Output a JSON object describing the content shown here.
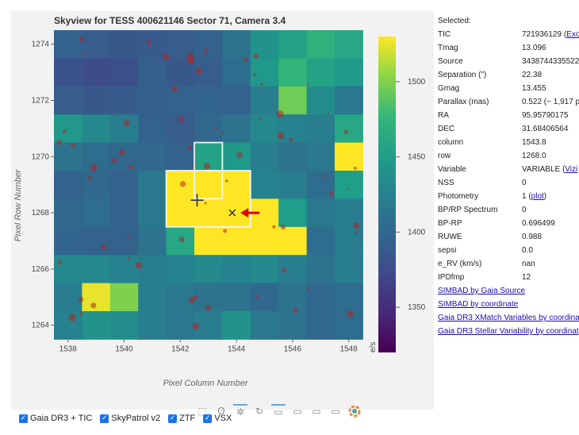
{
  "chart_data": {
    "type": "heatmap",
    "title": "Skyview for TESS 400621146 Sector 71, Camera 3.4",
    "xlabel": "Pixel Column Number",
    "ylabel": "Pixel Row Number",
    "colorbar_label": "e/s",
    "x_range": [
      1537.5,
      1548.5
    ],
    "y_range": [
      1263.5,
      1274.5
    ],
    "color_range": [
      1320,
      1530
    ],
    "x_ticks": [
      1538,
      1540,
      1542,
      1544,
      1546,
      1548
    ],
    "y_ticks": [
      1264,
      1266,
      1268,
      1270,
      1272,
      1274
    ],
    "colorbar_ticks": [
      1350,
      1400,
      1450,
      1500
    ],
    "rows_top_to_bottom": [
      1274,
      1273,
      1272,
      1271,
      1270,
      1269,
      1268,
      1267,
      1266,
      1265,
      1264
    ],
    "cols_left_to_right": [
      1538,
      1539,
      1540,
      1541,
      1542,
      1543,
      1544,
      1545,
      1546,
      1547,
      1548
    ],
    "values": [
      [
        1395,
        1390,
        1385,
        1388,
        1390,
        1395,
        1410,
        1440,
        1455,
        1470,
        1460
      ],
      [
        1380,
        1375,
        1378,
        1392,
        1385,
        1390,
        1405,
        1445,
        1475,
        1455,
        1445
      ],
      [
        1390,
        1385,
        1388,
        1392,
        1395,
        1398,
        1395,
        1420,
        1495,
        1435,
        1415
      ],
      [
        1445,
        1430,
        1420,
        1395,
        1390,
        1400,
        1410,
        1430,
        1425,
        1420,
        1460
      ],
      [
        1410,
        1405,
        1400,
        1400,
        1395,
        1455,
        1445,
        1420,
        1410,
        1415,
        1530
      ],
      [
        1395,
        1400,
        1395,
        1415,
        1530,
        1530,
        1530,
        1425,
        1420,
        1405,
        1450
      ],
      [
        1400,
        1405,
        1395,
        1415,
        1530,
        1530,
        1530,
        1530,
        1450,
        1415,
        1420
      ],
      [
        1398,
        1395,
        1395,
        1410,
        1460,
        1530,
        1530,
        1530,
        1530,
        1405,
        1420
      ],
      [
        1430,
        1430,
        1425,
        1420,
        1425,
        1430,
        1425,
        1430,
        1420,
        1410,
        1420
      ],
      [
        1420,
        1525,
        1500,
        1420,
        1415,
        1410,
        1410,
        1400,
        1410,
        1400,
        1405
      ],
      [
        1425,
        1440,
        1435,
        1420,
        1415,
        1420,
        1440,
        1415,
        1410,
        1400,
        1405
      ]
    ],
    "markers": [
      {
        "name": "cross-marker",
        "x": 1542.6,
        "y": 1268.45
      },
      {
        "name": "x-marker",
        "x": 1543.85,
        "y": 1268.0
      },
      {
        "name": "arrow-marker",
        "x": 1544.2,
        "y": 1268.0
      }
    ]
  },
  "toolbar": {
    "icons": [
      "box-zoom-icon",
      "lasso-icon",
      "crosshair-icon",
      "reset-icon",
      "hover-icon"
    ]
  },
  "info": {
    "header": "Selected:",
    "rows": [
      {
        "key": "TIC",
        "value": "721936129 (",
        "link": "Exo"
      },
      {
        "key": "Tmag",
        "value": "13.096"
      },
      {
        "key": "Source",
        "value": "3438744335522"
      },
      {
        "key": "Separation (\")",
        "value": "22.38"
      },
      {
        "key": "Gmag",
        "value": "13.455"
      },
      {
        "key": "Parallax (mas)",
        "value": "0.522 (~ 1,917 p"
      },
      {
        "key": "RA",
        "value": "95.95790175"
      },
      {
        "key": "DEC",
        "value": "31.68406564"
      },
      {
        "key": "column",
        "value": "1543.8"
      },
      {
        "key": "row",
        "value": "1268.0"
      },
      {
        "key": "Variable",
        "value": "VARIABLE (",
        "link": "Vizi"
      },
      {
        "key": "NSS",
        "value": "0"
      },
      {
        "key": "Photometry",
        "value": "1 (",
        "link": "plot",
        "suffix": ")"
      },
      {
        "key": "BP/RP Spectrum",
        "value": "0"
      },
      {
        "key": "BP-RP",
        "value": "0.696499"
      },
      {
        "key": "RUWE",
        "value": "0.988"
      },
      {
        "key": "sepsi",
        "value": "0.0"
      },
      {
        "key": "e_RV (km/s)",
        "value": "nan"
      },
      {
        "key": "IPDfmp",
        "value": "12"
      }
    ],
    "links": [
      "SIMBAD by Gaia Source",
      "SIMBAD by coordinate",
      "Gaia DR3 XMatch Variables by coordina",
      "Gaia DR3 Stellar Variability by coordinat"
    ]
  },
  "checkboxes": [
    {
      "label": "Gaia DR3 + TIC",
      "checked": true
    },
    {
      "label": "SkyPatrol v2",
      "checked": true
    },
    {
      "label": "ZTF",
      "checked": true
    },
    {
      "label": "VSX",
      "checked": true
    }
  ]
}
